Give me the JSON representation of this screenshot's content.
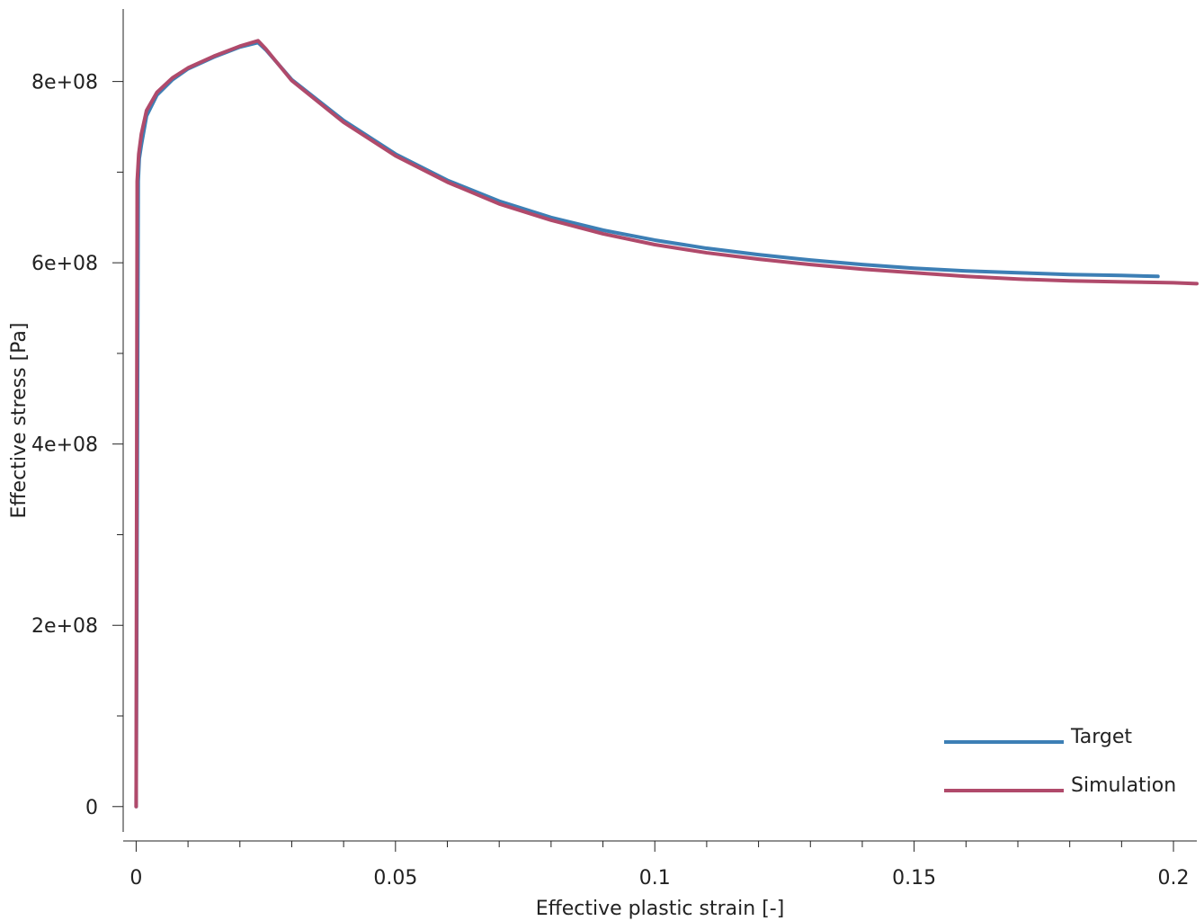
{
  "chart_data": {
    "type": "line",
    "xlabel": "Effective plastic strain [-]",
    "ylabel": "Effective stress [Pa]",
    "xlim": [
      -0.0025,
      0.2045
    ],
    "ylim": [
      -28000000.0,
      880000000.0
    ],
    "x_major_ticks": [
      0,
      0.05,
      0.1,
      0.15,
      0.2
    ],
    "x_tick_labels": [
      "0",
      "0.05",
      "0.1",
      "0.15",
      "0.2"
    ],
    "x_minor_step": 0.01,
    "y_major_ticks": [
      0,
      200000000,
      400000000,
      600000000,
      800000000
    ],
    "y_tick_labels": [
      "0",
      "2e+08",
      "4e+08",
      "6e+08",
      "8e+08"
    ],
    "y_minor_step": 100000000,
    "grid": false,
    "legend_position": "bottom-right",
    "series": [
      {
        "name": "Target",
        "color": "#3d7fb5",
        "x": [
          0,
          0.0004,
          0.0006,
          0.001,
          0.002,
          0.004,
          0.007,
          0.01,
          0.015,
          0.02,
          0.0235,
          0.025,
          0.03,
          0.04,
          0.05,
          0.06,
          0.07,
          0.08,
          0.09,
          0.1,
          0.11,
          0.12,
          0.13,
          0.14,
          0.15,
          0.16,
          0.17,
          0.18,
          0.19,
          0.197
        ],
        "y": [
          0,
          690000000,
          715000000,
          730000000,
          762000000,
          785000000,
          802000000,
          814000000,
          827000000,
          838000000,
          843000000,
          835000000,
          802000000,
          757000000,
          720000000,
          691000000,
          668000000,
          650000000,
          636000000,
          625000000,
          616000000,
          609000000,
          603000000,
          598000000,
          594000000,
          591000000,
          589000000,
          587000000,
          586000000,
          585000000
        ]
      },
      {
        "name": "Simulation",
        "color": "#b04a6b",
        "x": [
          0,
          0.0002,
          0.0005,
          0.001,
          0.002,
          0.004,
          0.007,
          0.01,
          0.015,
          0.02,
          0.0235,
          0.025,
          0.03,
          0.04,
          0.05,
          0.06,
          0.07,
          0.08,
          0.09,
          0.1,
          0.11,
          0.12,
          0.13,
          0.14,
          0.15,
          0.16,
          0.17,
          0.18,
          0.19,
          0.2,
          0.2045
        ],
        "y": [
          0,
          690000000,
          720000000,
          742000000,
          768000000,
          788000000,
          804000000,
          815000000,
          828000000,
          839000000,
          845000000,
          836000000,
          801000000,
          755000000,
          718000000,
          689000000,
          665000000,
          647000000,
          632000000,
          620000000,
          611000000,
          604000000,
          598000000,
          593000000,
          589000000,
          585000000,
          582000000,
          580000000,
          579000000,
          578000000,
          577000000
        ]
      }
    ]
  }
}
